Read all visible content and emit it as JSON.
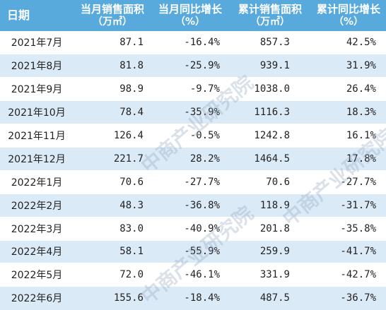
{
  "watermark": "中商产业研究院",
  "header": {
    "date": "日期",
    "col2_line1": "当月销售面积",
    "col2_line2": "（万㎡）",
    "col3_line1": "当月同比增长",
    "col3_line2": "（%）",
    "col4_line1": "累计销售面积",
    "col4_line2": "（万㎡）",
    "col5_line1": "累计同比增长",
    "col5_line2": "（%）"
  },
  "rows": [
    {
      "date": "2021年7月",
      "monthly_area": "87.1",
      "monthly_yoy": "-16.4%",
      "cum_area": "857.3",
      "cum_yoy": "42.5%"
    },
    {
      "date": "2021年8月",
      "monthly_area": "81.8",
      "monthly_yoy": "-25.9%",
      "cum_area": "939.1",
      "cum_yoy": "31.9%"
    },
    {
      "date": "2021年9月",
      "monthly_area": "98.9",
      "monthly_yoy": "-9.7%",
      "cum_area": "1038.0",
      "cum_yoy": "26.4%"
    },
    {
      "date": "2021年10月",
      "monthly_area": "78.4",
      "monthly_yoy": "-35.9%",
      "cum_area": "1116.3",
      "cum_yoy": "18.3%"
    },
    {
      "date": "2021年11月",
      "monthly_area": "126.4",
      "monthly_yoy": "-0.5%",
      "cum_area": "1242.8",
      "cum_yoy": "16.1%"
    },
    {
      "date": "2021年12月",
      "monthly_area": "221.7",
      "monthly_yoy": "28.2%",
      "cum_area": "1464.5",
      "cum_yoy": "17.8%"
    },
    {
      "date": "2022年1月",
      "monthly_area": "70.6",
      "monthly_yoy": "-27.7%",
      "cum_area": "70.6",
      "cum_yoy": "-27.7%"
    },
    {
      "date": "2022年2月",
      "monthly_area": "48.3",
      "monthly_yoy": "-36.8%",
      "cum_area": "118.9",
      "cum_yoy": "-31.7%"
    },
    {
      "date": "2022年3月",
      "monthly_area": "83.0",
      "monthly_yoy": "-40.9%",
      "cum_area": "201.8",
      "cum_yoy": "-35.8%"
    },
    {
      "date": "2022年4月",
      "monthly_area": "58.1",
      "monthly_yoy": "-55.9%",
      "cum_area": "259.9",
      "cum_yoy": "-41.7%"
    },
    {
      "date": "2022年5月",
      "monthly_area": "72.0",
      "monthly_yoy": "-46.1%",
      "cum_area": "331.9",
      "cum_yoy": "-42.7%"
    },
    {
      "date": "2022年6月",
      "monthly_area": "155.6",
      "monthly_yoy": "-18.4%",
      "cum_area": "487.5",
      "cum_yoy": "-36.7%"
    }
  ]
}
